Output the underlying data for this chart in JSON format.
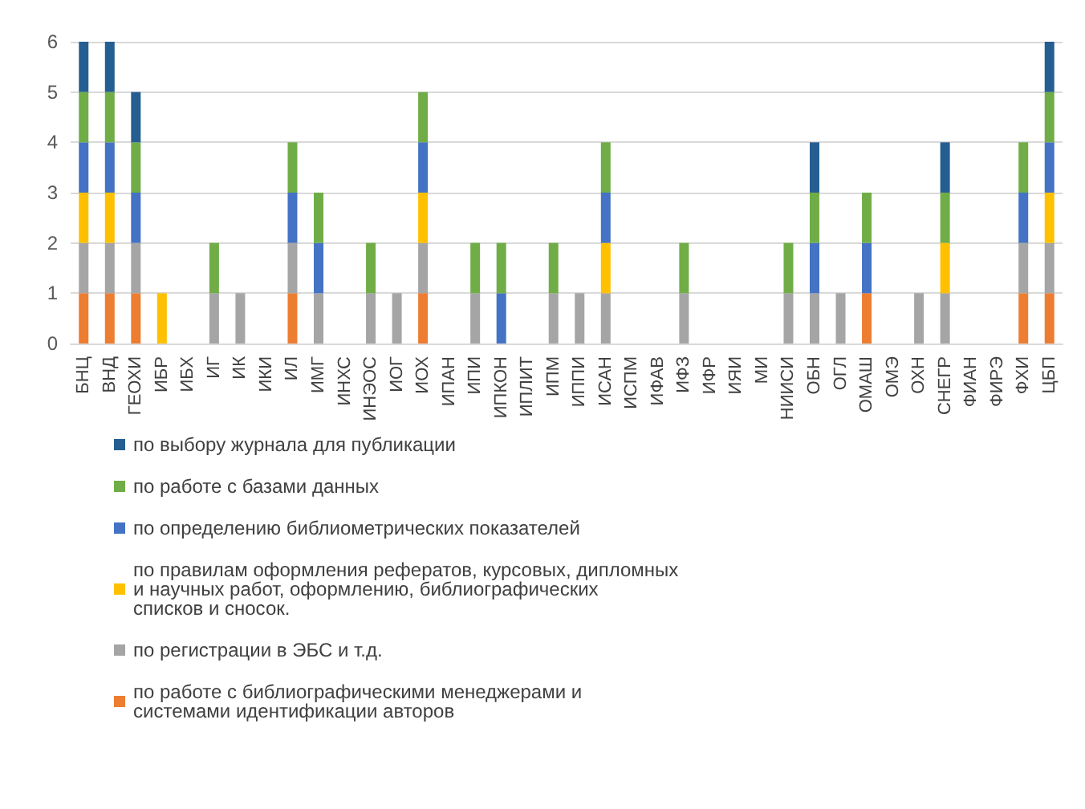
{
  "chart_data": {
    "type": "bar",
    "stacked": true,
    "grid": "y",
    "legend": "bottom",
    "ylim": [
      0,
      6
    ],
    "yticks": [
      0,
      1,
      2,
      3,
      4,
      5,
      6
    ],
    "categories": [
      "БНЦ",
      "ВНД",
      "ГЕОХИ",
      "ИБР",
      "ИБХ",
      "ИГ",
      "ИК",
      "ИКИ",
      "ИЛ",
      "ИМГ",
      "ИНХС",
      "ИНЭОС",
      "ИОГ",
      "ИОХ",
      "ИПАН",
      "ИПИ",
      "ИПКОН",
      "ИПЛИТ",
      "ИПМ",
      "ИППИ",
      "ИСАН",
      "ИСПМ",
      "ИФАВ",
      "ИФЗ",
      "ИФР",
      "ИЯИ",
      "МИ",
      "НИИСИ",
      "ОБН",
      "ОГЛ",
      "ОМАШ",
      "ОМЭ",
      "ОХН",
      "СНЕГР",
      "ФИАН",
      "ФИРЭ",
      "ФХИ",
      "ЦБП"
    ],
    "series": [
      {
        "name": "по работе с библиографическими менеджерами и системами идентификации авторов",
        "color": "#ed7d31",
        "values": [
          1,
          1,
          1,
          0,
          0,
          0,
          0,
          0,
          1,
          0,
          0,
          0,
          0,
          1,
          0,
          0,
          0,
          0,
          0,
          0,
          0,
          0,
          0,
          0,
          0,
          0,
          0,
          0,
          0,
          0,
          1,
          0,
          0,
          0,
          0,
          0,
          1,
          1
        ]
      },
      {
        "name": "по регистрации в ЭБС и т.д.",
        "color": "#a5a5a5",
        "values": [
          1,
          1,
          1,
          0,
          0,
          1,
          1,
          0,
          1,
          1,
          0,
          1,
          1,
          1,
          0,
          1,
          0,
          0,
          1,
          1,
          1,
          0,
          0,
          1,
          0,
          0,
          0,
          1,
          1,
          1,
          0,
          0,
          1,
          1,
          0,
          0,
          1,
          1
        ]
      },
      {
        "name": "по правилам оформления рефератов, курсовых, дипломных и научных работ, оформлению, библиографических списков и сносок.",
        "color": "#ffc000",
        "values": [
          1,
          1,
          0,
          1,
          0,
          0,
          0,
          0,
          0,
          0,
          0,
          0,
          0,
          1,
          0,
          0,
          0,
          0,
          0,
          0,
          1,
          0,
          0,
          0,
          0,
          0,
          0,
          0,
          0,
          0,
          0,
          0,
          0,
          1,
          0,
          0,
          0,
          1
        ]
      },
      {
        "name": "по определению библиометрических показателей",
        "color": "#4472c4",
        "values": [
          1,
          1,
          1,
          0,
          0,
          0,
          0,
          0,
          1,
          1,
          0,
          0,
          0,
          1,
          0,
          0,
          1,
          0,
          0,
          0,
          1,
          0,
          0,
          0,
          0,
          0,
          0,
          0,
          1,
          0,
          1,
          0,
          0,
          0,
          0,
          0,
          1,
          1
        ]
      },
      {
        "name": "по работе с базами данных",
        "color": "#70ad47",
        "values": [
          1,
          1,
          1,
          0,
          0,
          1,
          0,
          0,
          1,
          1,
          0,
          1,
          0,
          1,
          0,
          1,
          1,
          0,
          1,
          0,
          1,
          0,
          0,
          1,
          0,
          0,
          0,
          1,
          1,
          0,
          1,
          0,
          0,
          1,
          0,
          0,
          1,
          1
        ]
      },
      {
        "name": "по выбору журнала для публикации",
        "color": "#255e91",
        "values": [
          1,
          1,
          1,
          0,
          0,
          0,
          0,
          0,
          0,
          0,
          0,
          0,
          0,
          0,
          0,
          0,
          0,
          0,
          0,
          0,
          0,
          0,
          0,
          0,
          0,
          0,
          0,
          0,
          1,
          0,
          0,
          0,
          0,
          1,
          0,
          0,
          0,
          1
        ]
      }
    ]
  }
}
